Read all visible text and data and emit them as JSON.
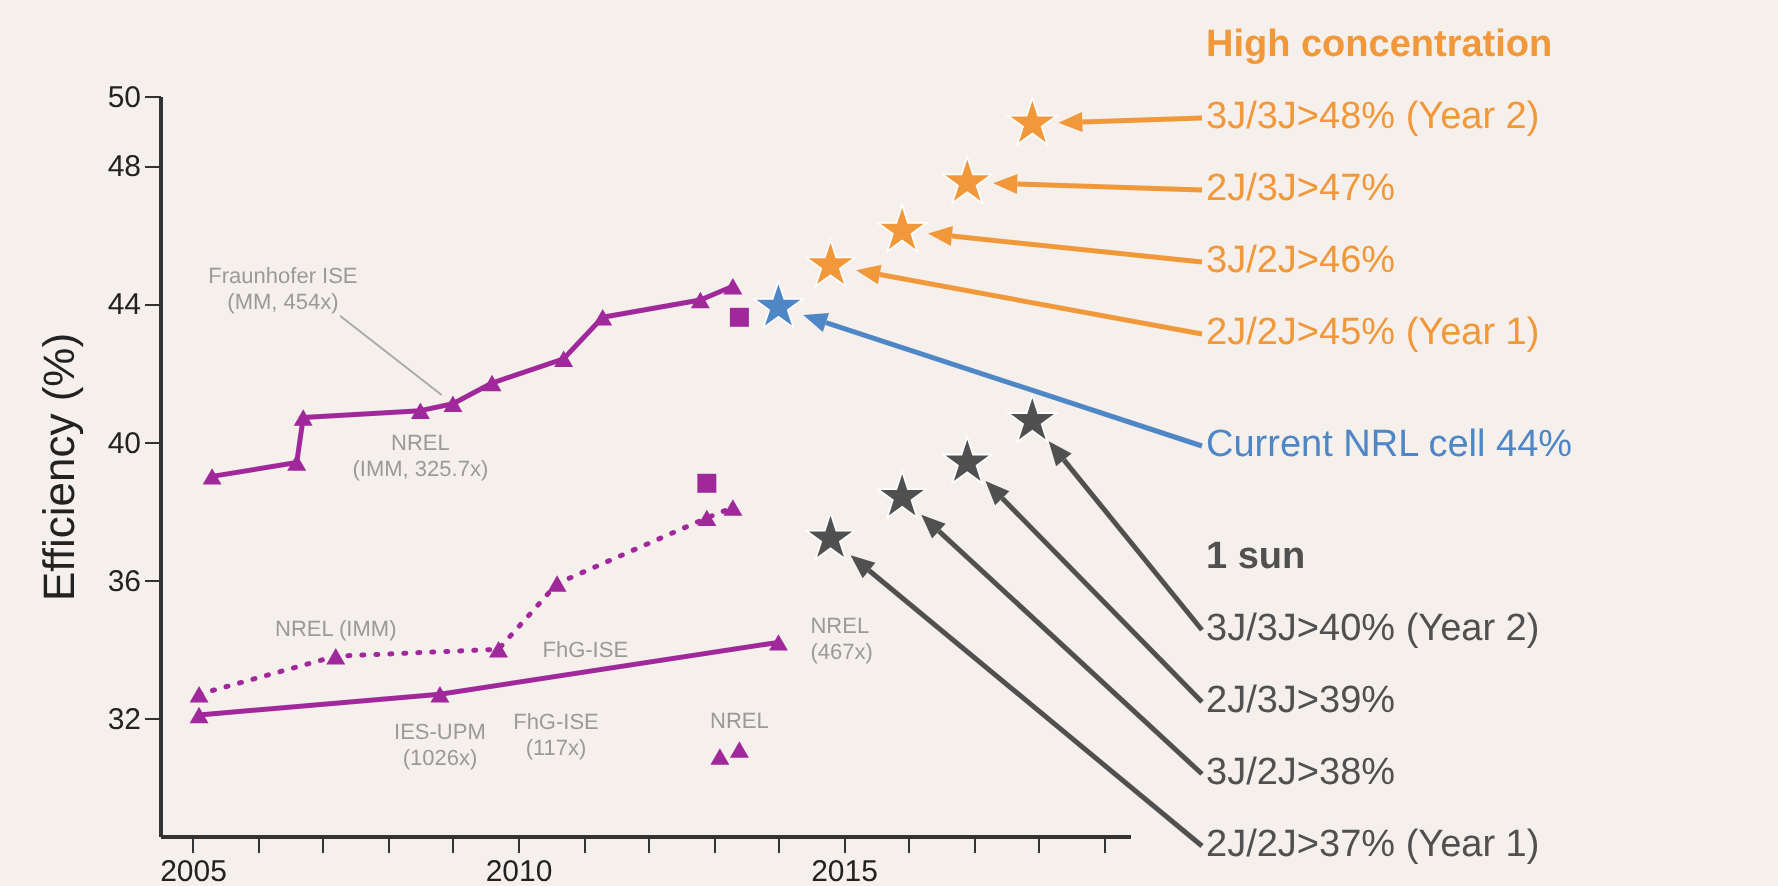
{
  "chart_data": {
    "type": "line",
    "ylabel": "Efficiency (%)",
    "xlim": [
      2004.5,
      2019.4
    ],
    "xticks": [
      2005,
      {
        "value": 2006,
        "label": null
      },
      {
        "value": 2007,
        "label": null
      },
      {
        "value": 2008,
        "label": null
      },
      {
        "value": 2009,
        "label": null
      },
      2010,
      {
        "value": 2011,
        "label": null
      },
      {
        "value": 2012,
        "label": null
      },
      {
        "value": 2013,
        "label": null
      },
      {
        "value": 2014,
        "label": null
      },
      2015,
      {
        "value": 2016,
        "label": null
      },
      {
        "value": 2017,
        "label": null
      },
      {
        "value": 2018,
        "label": null
      },
      {
        "value": 2019,
        "label": null
      }
    ],
    "ylim": [
      28.6,
      50
    ],
    "yticks": [
      32,
      36,
      40,
      44,
      48,
      50
    ],
    "series": [
      {
        "color": "#a0289a",
        "marker": "triangle",
        "x": [
          2005.3,
          2006.6,
          2006.7,
          2008.5,
          2009.0,
          2009.6,
          2010.7,
          2011.3,
          2012.8,
          2013.3
        ],
        "values": [
          39.0,
          39.4,
          40.7,
          40.9,
          41.1,
          41.7,
          42.4,
          43.6,
          44.1,
          44.5
        ]
      },
      {
        "type": "scatter",
        "color": "#a0289a",
        "marker": "square",
        "x": [
          2013.4,
          2012.9
        ],
        "values": [
          43.6,
          38.8
        ]
      },
      {
        "color": "#a0289a",
        "marker": "triangle",
        "line_style": "dotted",
        "x": [
          2005.1,
          2007.2,
          2009.7,
          2010.6,
          2012.9,
          2013.3
        ],
        "values": [
          32.7,
          33.8,
          34.0,
          35.9,
          37.8,
          38.1
        ]
      },
      {
        "color": "#a0289a",
        "marker": "triangle",
        "x": [
          2005.1,
          2008.8,
          2014.0
        ],
        "values": [
          32.1,
          32.7,
          34.2
        ]
      },
      {
        "type": "scatter",
        "color": "#a0289a",
        "marker": "triangle",
        "x": [
          2013.1,
          2013.4
        ],
        "values": [
          30.9,
          31.1
        ]
      },
      {
        "type": "scatter",
        "name": "High concentration",
        "color": "#f0983a",
        "marker": "star",
        "x": [
          2014.8,
          2015.9,
          2016.9,
          2017.9
        ],
        "values": [
          45.1,
          46.1,
          47.5,
          49.2
        ]
      },
      {
        "type": "scatter",
        "color": "#4f86c6",
        "marker": "star",
        "x": [
          2014.0
        ],
        "values": [
          43.9
        ]
      },
      {
        "type": "scatter",
        "name": "1 sun",
        "color": "#505050",
        "marker": "star",
        "x": [
          2014.8,
          2015.9,
          2016.9,
          2017.9
        ],
        "values": [
          37.2,
          38.4,
          39.4,
          40.6
        ]
      }
    ],
    "annotations": [
      {
        "text": "Fraunhofer ISE (MM, 454x)",
        "x": 2009.0,
        "y": 41.1
      },
      {
        "text": "NREL (IMM, 325.7x)",
        "x": 2008.5,
        "y": 40.9
      },
      {
        "text": "NREL (IMM)",
        "x": 2007.2,
        "y": 33.8
      },
      {
        "text": "FhG-ISE",
        "x": 2009.7,
        "y": 34.0
      },
      {
        "text": "IES-UPM (1026x)",
        "x": 2008.8,
        "y": 32.7
      },
      "FhG-ISE (117x)",
      {
        "text": "NREL (467x)",
        "x": 2014.0,
        "y": 34.2
      },
      {
        "text": "NREL",
        "x": 2013.4,
        "y": 31.1
      },
      "3J/3J>48% (Year 2)",
      "2J/3J>47%",
      "3J/2J>46%",
      "2J/2J>45% (Year 1)",
      "Current NRL cell 44%",
      "3J/3J>40% (Year 2)",
      "2J/3J>39%",
      "3J/2J>38%",
      "2J/2J>37% (Year 1)"
    ]
  }
}
